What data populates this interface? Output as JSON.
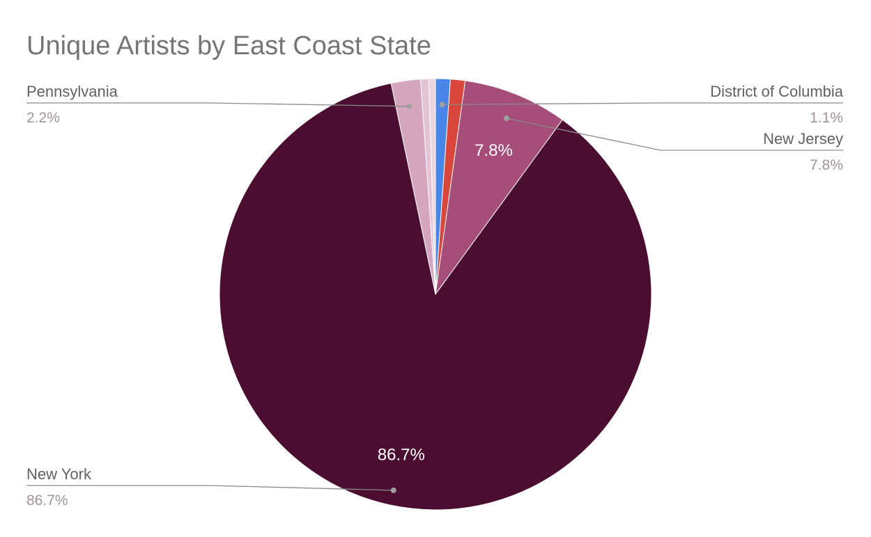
{
  "chart_data": {
    "type": "pie",
    "title": "Unique Artists by East Coast State",
    "slices": [
      {
        "label": "District of Columbia",
        "value": 1.1,
        "display": "1.1%",
        "color": "#4a86e8",
        "show_inner_label": false
      },
      {
        "label": "",
        "value": 1.1,
        "display": "",
        "color": "#d9463b",
        "show_inner_label": false
      },
      {
        "label": "New Jersey",
        "value": 7.8,
        "display": "7.8%",
        "color": "#a64d79",
        "show_inner_label": true
      },
      {
        "label": "New York",
        "value": 86.7,
        "display": "86.7%",
        "color": "#4c0e30",
        "show_inner_label": true
      },
      {
        "label": "Pennsylvania",
        "value": 2.2,
        "display": "2.2%",
        "color": "#d5a6bd",
        "show_inner_label": false
      },
      {
        "label": "",
        "value": 0.6,
        "display": "",
        "color": "#e2c4d2",
        "show_inner_label": false
      },
      {
        "label": "",
        "value": 0.5,
        "display": "",
        "color": "#ead5df",
        "show_inner_label": false
      }
    ],
    "legend": "none",
    "callouts": [
      {
        "label": "Pennsylvania",
        "pct": "2.2%",
        "side": "left",
        "slice": 4
      },
      {
        "label": "District of Columbia",
        "pct": "1.1%",
        "side": "right",
        "slice": 0
      },
      {
        "label": "New Jersey",
        "pct": "7.8%",
        "side": "right",
        "slice": 2
      },
      {
        "label": "New York",
        "pct": "86.7%",
        "side": "left",
        "slice": 3
      }
    ]
  }
}
